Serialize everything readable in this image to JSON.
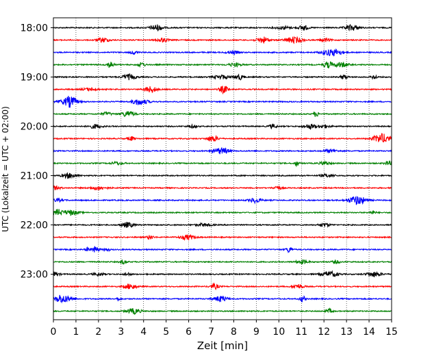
{
  "chart_data": {
    "type": "line",
    "title": "",
    "xlabel": "Zeit  [min]",
    "ylabel": "UTC (Lokalzeit = UTC + 02:00)",
    "xlim": [
      0,
      15
    ],
    "x_ticks": [
      0,
      1,
      2,
      3,
      4,
      5,
      6,
      7,
      8,
      9,
      10,
      11,
      12,
      13,
      14,
      15
    ],
    "x_tick_labels": [
      "0",
      "1",
      "2",
      "3",
      "4",
      "5",
      "6",
      "7",
      "8",
      "9",
      "10",
      "11",
      "12",
      "13",
      "14",
      "15"
    ],
    "y_tick_labels": [
      "18:00",
      "19:00",
      "20:00",
      "21:00",
      "22:00",
      "23:00"
    ],
    "traces_per_hour": 4,
    "minutes_per_trace": 15,
    "hours": [
      "18:00",
      "19:00",
      "20:00",
      "21:00",
      "22:00",
      "23:00"
    ],
    "trace_colors": [
      "#000000",
      "#ff0000",
      "#0000ff",
      "#008000"
    ],
    "grid": "vertical dotted lines at each minute",
    "legend": "none"
  }
}
